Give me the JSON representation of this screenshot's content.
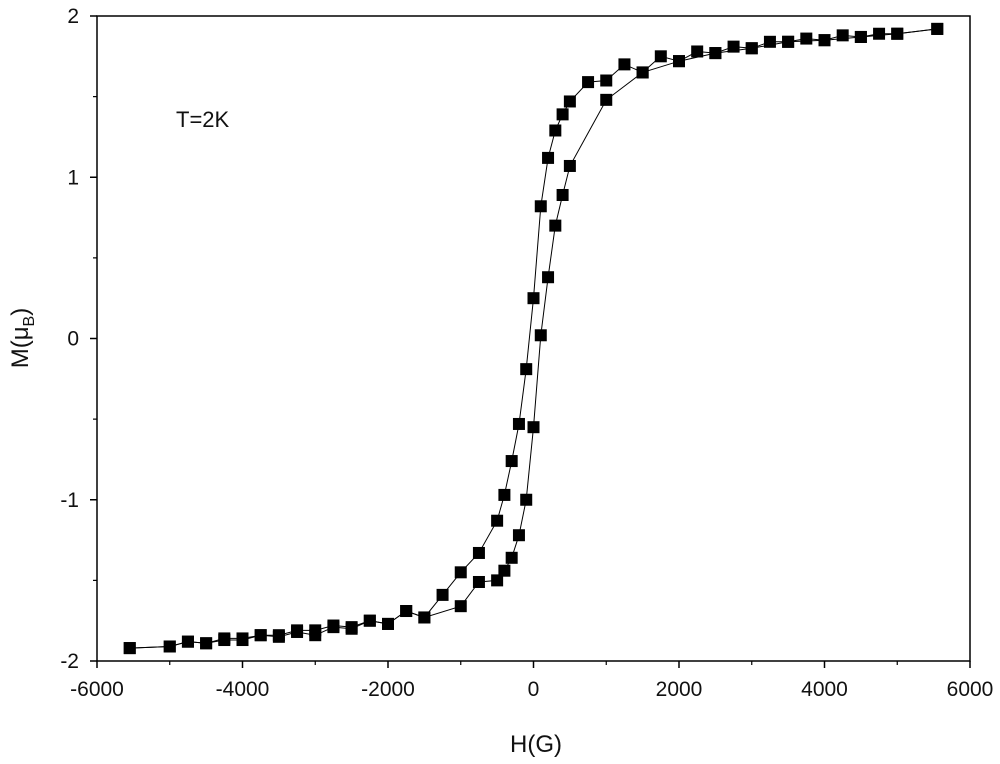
{
  "chart_data": {
    "type": "scatter",
    "xlabel": "H(G)",
    "ylabel_main": "M(μ",
    "ylabel_sub": "B",
    "ylabel_close": ")",
    "annotation": "T=2K",
    "xlim": [
      -6000,
      6000
    ],
    "ylim": [
      -2,
      2
    ],
    "x_ticks": [
      "-6000",
      "-4000",
      "-2000",
      "0",
      "2000",
      "4000",
      "6000"
    ],
    "y_ticks": [
      "-2",
      "-1",
      "0",
      "1",
      "2"
    ],
    "grid": false,
    "marker": "filled-square",
    "line_color": "#000000",
    "marker_color": "#000000",
    "series": [
      {
        "x": [
          5550,
          5000,
          4750,
          4500,
          4250,
          4000,
          3750,
          3500,
          3250,
          3000,
          2750,
          2500,
          2250,
          2000,
          1750,
          1500,
          1250,
          1000,
          750,
          500,
          400,
          300,
          200,
          100,
          0,
          -100,
          -200,
          -300,
          -400,
          -500,
          -750,
          -1000,
          -1250,
          -1500,
          -1750,
          -2000,
          -2250,
          -2500,
          -2750,
          -3000,
          -3250,
          -3500,
          -3750,
          -4000,
          -4250,
          -4500,
          -4750,
          -5000,
          -5550
        ],
        "y": [
          1.92,
          1.89,
          1.89,
          1.87,
          1.88,
          1.85,
          1.86,
          1.84,
          1.84,
          1.8,
          1.81,
          1.77,
          1.78,
          1.72,
          1.75,
          1.65,
          1.7,
          1.6,
          1.59,
          1.47,
          1.39,
          1.29,
          1.12,
          0.82,
          0.25,
          -0.19,
          -0.53,
          -0.76,
          -0.97,
          -1.13,
          -1.33,
          -1.45,
          -1.59,
          -1.73,
          -1.69,
          -1.77,
          -1.75,
          -1.8,
          -1.79,
          -1.84,
          -1.82,
          -1.85,
          -1.84,
          -1.87,
          -1.87,
          -1.89,
          -1.88,
          -1.91,
          -1.92
        ]
      },
      {
        "x": [
          -5550,
          -5000,
          -4750,
          -4500,
          -4250,
          -4000,
          -3750,
          -3500,
          -3250,
          -3000,
          -2750,
          -2500,
          -2250,
          -2000,
          -1750,
          -1500,
          -1000,
          -750,
          -500,
          -400,
          -300,
          -200,
          -100,
          0,
          100,
          200,
          300,
          400,
          500,
          1000,
          1500,
          2000,
          2500,
          3000,
          3500,
          4000,
          4500,
          5000,
          5550
        ],
        "y": [
          -1.92,
          -1.91,
          -1.88,
          -1.89,
          -1.86,
          -1.86,
          -1.84,
          -1.84,
          -1.81,
          -1.81,
          -1.78,
          -1.79,
          -1.75,
          -1.77,
          -1.69,
          -1.73,
          -1.66,
          -1.51,
          -1.5,
          -1.44,
          -1.36,
          -1.22,
          -1.0,
          -0.55,
          0.02,
          0.38,
          0.7,
          0.89,
          1.07,
          1.48,
          1.65,
          1.72,
          1.77,
          1.8,
          1.84,
          1.85,
          1.87,
          1.89,
          1.92
        ]
      }
    ]
  }
}
